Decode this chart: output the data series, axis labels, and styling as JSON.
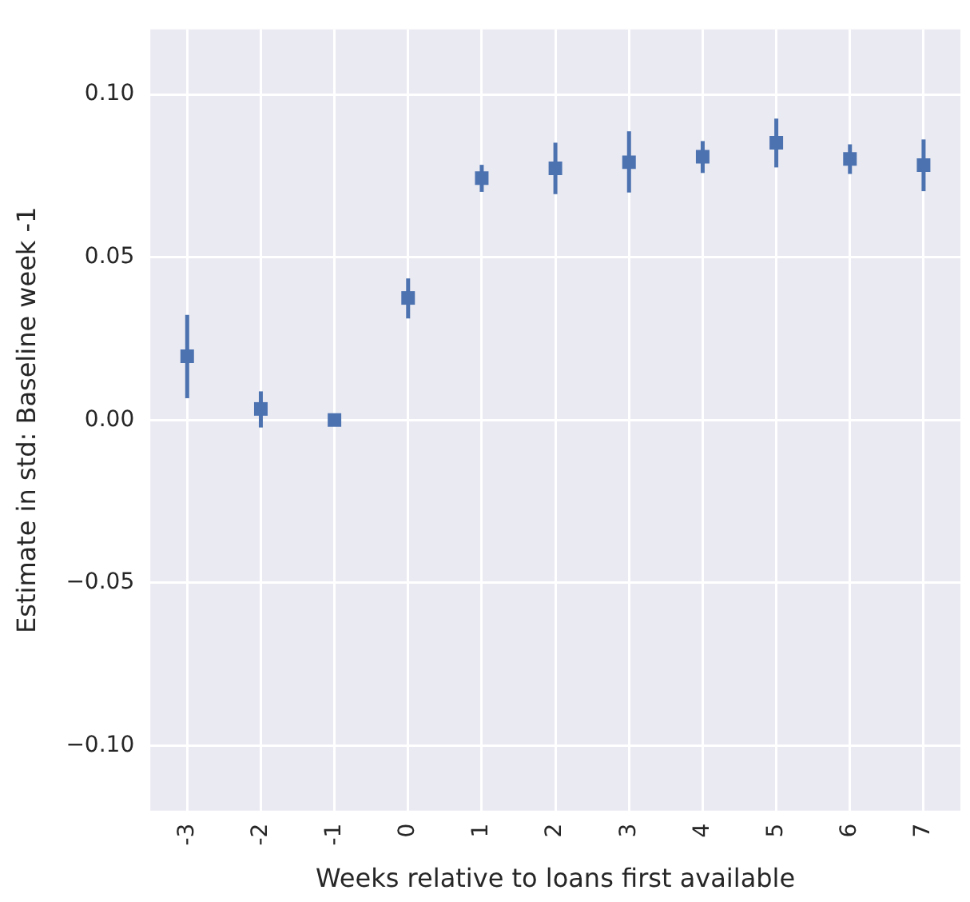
{
  "chart_data": {
    "type": "scatter",
    "xlabel": "Weeks relative to loans first available",
    "ylabel": "Estimate in std: Baseline week -1",
    "categories": [
      "-3",
      "-2",
      "-1",
      "0",
      "1",
      "2",
      "3",
      "4",
      "5",
      "6",
      "7"
    ],
    "series": [
      {
        "color": "#4c72b0",
        "values": [
          0.0196,
          0.0034,
          0,
          0.0375,
          0.0743,
          0.0773,
          0.0792,
          0.0809,
          0.0852,
          0.0802,
          0.0783
        ],
        "errors": [
          [
            0.0067,
            0.0323
          ],
          [
            -0.0023,
            0.0088
          ],
          null,
          [
            0.0312,
            0.0435
          ],
          [
            0.0701,
            0.0784
          ],
          [
            0.0694,
            0.0852
          ],
          [
            0.0699,
            0.0887
          ],
          [
            0.0759,
            0.0857
          ],
          [
            0.0776,
            0.0926
          ],
          [
            0.0756,
            0.0847
          ],
          [
            0.0703,
            0.0862
          ]
        ]
      }
    ],
    "ylim": [
      -0.12,
      0.12
    ],
    "yticks": [
      {
        "value": -0.1,
        "label": "−0.10"
      },
      {
        "value": -0.05,
        "label": "−0.05"
      },
      {
        "value": 0,
        "label": "0.00"
      },
      {
        "value": 0.05,
        "label": "0.05"
      },
      {
        "value": 0.1,
        "label": "0.10"
      }
    ],
    "grid": true,
    "marker": "square",
    "legend": false
  }
}
